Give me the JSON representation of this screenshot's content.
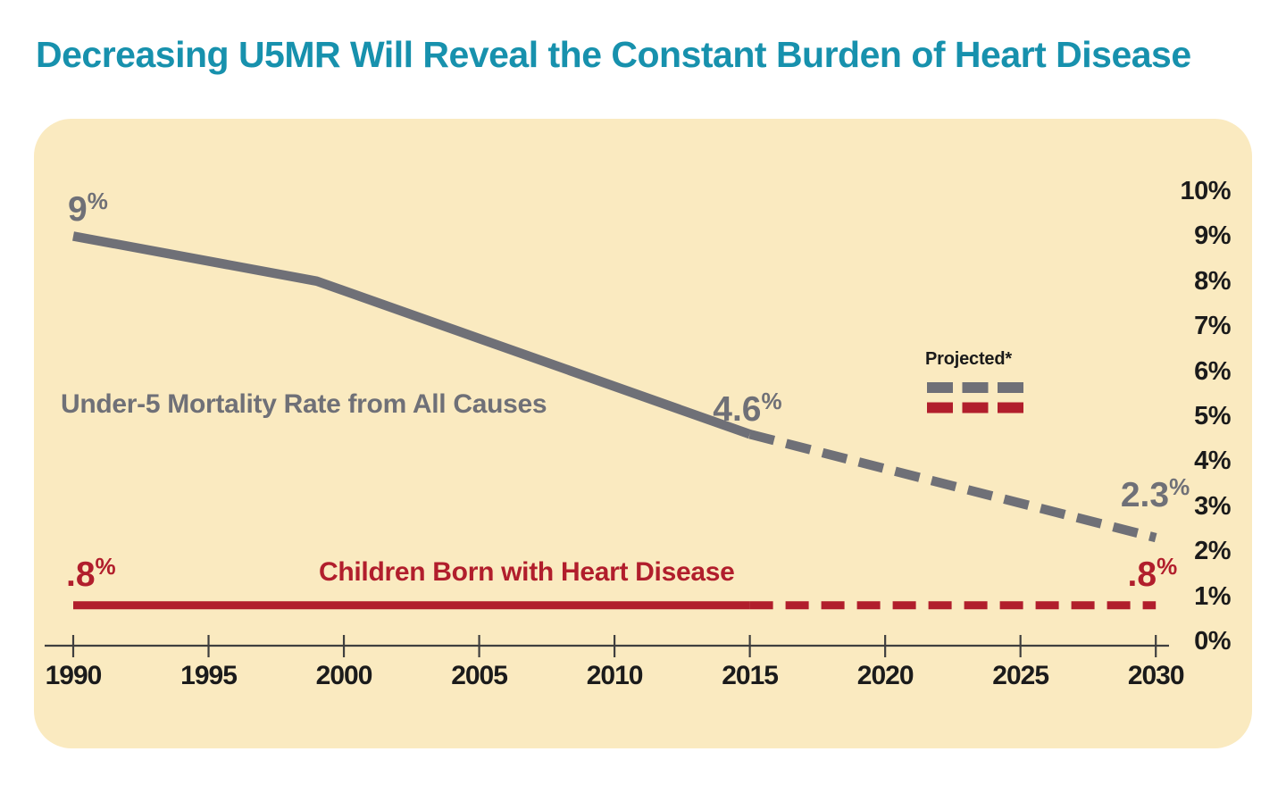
{
  "page": {
    "background": "#ffffff"
  },
  "title": {
    "text": "Decreasing U5MR Will Reveal the Constant Burden of Heart Disease",
    "color": "#1791AD"
  },
  "panel": {
    "background": "#FAEAC0"
  },
  "chart_data": {
    "type": "line",
    "x": {
      "min": 1990,
      "max": 2030,
      "ticks": [
        1990,
        1995,
        2000,
        2005,
        2010,
        2015,
        2020,
        2025,
        2030
      ]
    },
    "y": {
      "min": 0,
      "max": 10,
      "unit": "%",
      "position": "right",
      "tick_labels": [
        "0%",
        "1%",
        "2%",
        "3%",
        "4%",
        "5%",
        "6%",
        "7%",
        "8%",
        "9%",
        "10%"
      ]
    },
    "grid": false,
    "series": [
      {
        "id": "u5mr",
        "name": "Under-5 Mortality Rate from All Causes",
        "color": "#6F7077",
        "solid": [
          [
            1990,
            9.0
          ],
          [
            1999,
            8.0
          ],
          [
            2015,
            4.6
          ]
        ],
        "projected": [
          [
            2015,
            4.6
          ],
          [
            2030,
            2.3
          ]
        ]
      },
      {
        "id": "heart",
        "name": "Children Born with Heart Disease",
        "color": "#B11E2C",
        "solid": [
          [
            1990,
            0.8
          ],
          [
            2015,
            0.8
          ]
        ],
        "projected": [
          [
            2015,
            0.8
          ],
          [
            2030,
            0.8
          ]
        ]
      }
    ],
    "annotations": [
      {
        "id": "g1990",
        "series": "u5mr",
        "year": 1990,
        "value": 9.0,
        "big": "9",
        "sup": "%"
      },
      {
        "id": "g2015",
        "series": "u5mr",
        "year": 2015,
        "value": 4.6,
        "big": "4.6",
        "sup": "%"
      },
      {
        "id": "g2030",
        "series": "u5mr",
        "year": 2030,
        "value": 2.3,
        "big": "2.3",
        "sup": "%"
      },
      {
        "id": "r1990",
        "series": "heart",
        "year": 1990,
        "value": 0.8,
        "big": ".8",
        "sup": "%"
      },
      {
        "id": "r2030",
        "series": "heart",
        "year": 2030,
        "value": 0.8,
        "big": ".8",
        "sup": "%"
      }
    ],
    "legend": {
      "label": "Projected*",
      "position": "inside-right"
    }
  }
}
